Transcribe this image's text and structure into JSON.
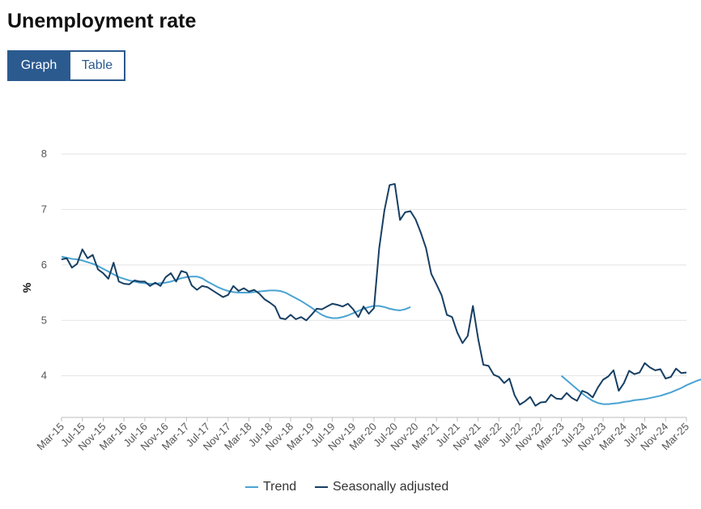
{
  "title": "Unemployment rate",
  "tabs": {
    "graph": "Graph",
    "table": "Table"
  },
  "colors": {
    "trend": "#4aa3d2",
    "seasonally_adjusted": "#173f63",
    "accent": "#2b5a8f",
    "grid": "#e3e3e3"
  },
  "chart_data": {
    "type": "line",
    "title": "",
    "xlabel": "",
    "ylabel": "%",
    "ylim": [
      3.25,
      8
    ],
    "yticks": [
      4,
      5,
      6,
      7,
      8
    ],
    "x_start": "Mar-15",
    "x_ticks": [
      "Mar-15",
      "Jul-15",
      "Nov-15",
      "Mar-16",
      "Jul-16",
      "Nov-16",
      "Mar-17",
      "Jul-17",
      "Nov-17",
      "Mar-18",
      "Jul-18",
      "Nov-18",
      "Mar-19",
      "Jul-19",
      "Nov-19",
      "Mar-20",
      "Jul-20",
      "Nov-20",
      "Mar-21",
      "Jul-21",
      "Nov-21",
      "Mar-22",
      "Jul-22",
      "Nov-22",
      "Mar-23",
      "Jul-23",
      "Nov-23",
      "Mar-24",
      "Jul-24",
      "Nov-24",
      "Mar-25"
    ],
    "grid": true,
    "legend_position": "bottom",
    "series": [
      {
        "name": "Trend",
        "values": [
          6.15,
          6.13,
          6.11,
          6.1,
          6.08,
          6.05,
          6.02,
          5.98,
          5.93,
          5.88,
          5.83,
          5.78,
          5.75,
          5.72,
          5.7,
          5.68,
          5.67,
          5.66,
          5.66,
          5.67,
          5.68,
          5.7,
          5.73,
          5.76,
          5.78,
          5.79,
          5.79,
          5.76,
          5.7,
          5.65,
          5.6,
          5.56,
          5.53,
          5.51,
          5.5,
          5.5,
          5.5,
          5.51,
          5.52,
          5.53,
          5.54,
          5.54,
          5.53,
          5.5,
          5.45,
          5.4,
          5.35,
          5.29,
          5.23,
          5.16,
          5.1,
          5.06,
          5.04,
          5.04,
          5.06,
          5.09,
          5.13,
          5.17,
          5.21,
          5.24,
          5.26,
          5.26,
          5.24,
          5.21,
          5.19,
          5.18,
          5.2,
          5.24,
          null,
          null,
          null,
          null,
          null,
          null,
          null,
          null,
          null,
          null,
          null,
          null,
          null,
          null,
          null,
          null,
          null,
          null,
          null,
          null,
          null,
          null,
          null,
          null,
          null,
          null,
          null,
          null,
          4.0,
          3.92,
          3.84,
          3.76,
          3.68,
          3.61,
          3.55,
          3.51,
          3.49,
          3.49,
          3.5,
          3.51,
          3.53,
          3.54,
          3.56,
          3.57,
          3.58,
          3.6,
          3.62,
          3.64,
          3.67,
          3.7,
          3.74,
          3.78,
          3.83,
          3.87,
          3.91,
          3.94,
          3.97,
          3.99,
          4.01,
          4.03,
          4.05,
          4.07,
          4.08,
          4.09,
          4.09,
          4.09,
          4.08,
          4.07,
          4.06,
          4.05,
          4.05,
          4.05,
          4.06
        ]
      },
      {
        "name": "Seasonally adjusted",
        "values": [
          6.1,
          6.12,
          5.95,
          6.02,
          6.28,
          6.12,
          6.18,
          5.92,
          5.85,
          5.75,
          6.04,
          5.7,
          5.66,
          5.65,
          5.72,
          5.7,
          5.7,
          5.62,
          5.68,
          5.62,
          5.78,
          5.85,
          5.7,
          5.89,
          5.86,
          5.63,
          5.55,
          5.62,
          5.6,
          5.54,
          5.48,
          5.42,
          5.46,
          5.62,
          5.53,
          5.58,
          5.52,
          5.55,
          5.48,
          5.38,
          5.32,
          5.25,
          5.04,
          5.02,
          5.1,
          5.02,
          5.06,
          5.0,
          5.1,
          5.21,
          5.2,
          5.25,
          5.3,
          5.28,
          5.25,
          5.3,
          5.2,
          5.06,
          5.25,
          5.12,
          5.22,
          6.3,
          6.98,
          7.44,
          7.46,
          6.81,
          6.95,
          6.97,
          6.82,
          6.58,
          6.3,
          5.84,
          5.65,
          5.45,
          5.1,
          5.06,
          4.78,
          4.59,
          4.72,
          5.26,
          4.67,
          4.2,
          4.18,
          4.02,
          3.98,
          3.87,
          3.95,
          3.65,
          3.48,
          3.54,
          3.62,
          3.46,
          3.52,
          3.53,
          3.66,
          3.59,
          3.58,
          3.69,
          3.6,
          3.55,
          3.73,
          3.69,
          3.61,
          3.79,
          3.93,
          3.99,
          4.1,
          3.73,
          3.87,
          4.09,
          4.03,
          4.06,
          4.23,
          4.15,
          4.1,
          4.12,
          3.95,
          3.98,
          4.13,
          4.05,
          4.06
        ]
      }
    ]
  },
  "legend": {
    "trend": "Trend",
    "seasonally_adjusted": "Seasonally adjusted"
  }
}
